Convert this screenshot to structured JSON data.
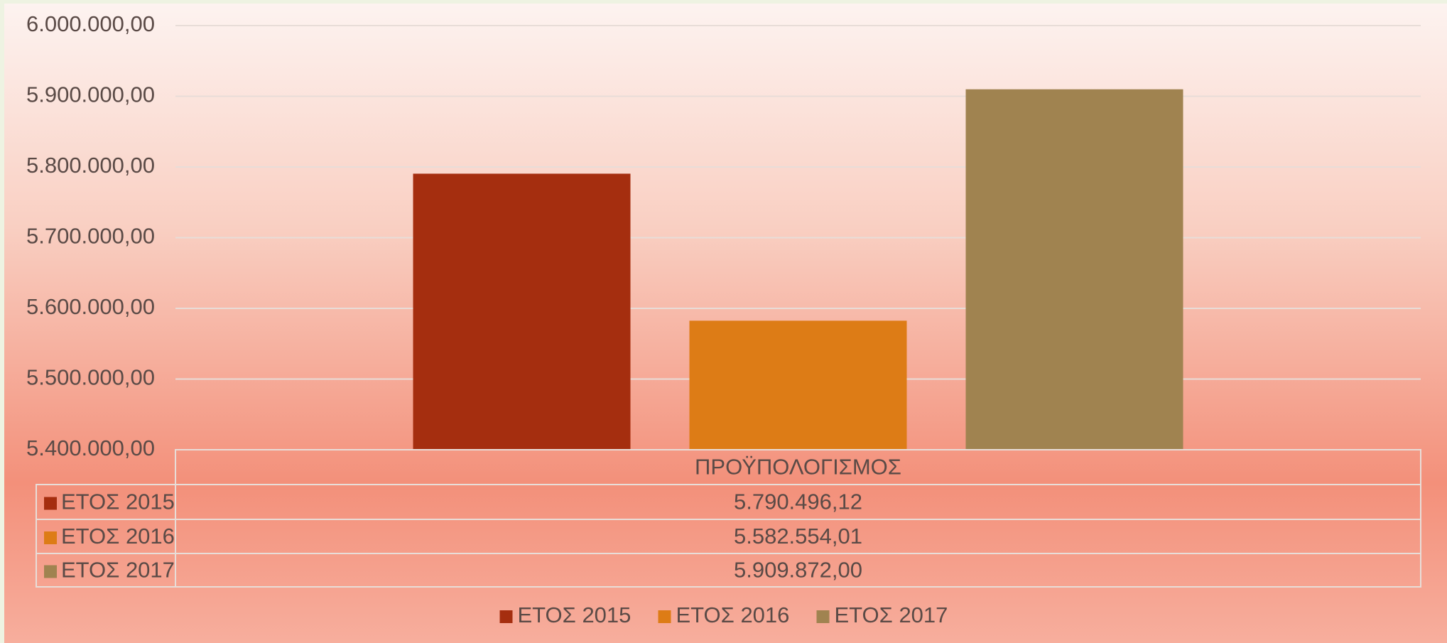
{
  "chart_data": {
    "type": "bar",
    "categories": [
      "ΠΡΟΫΠΟΛΟΓΙΣΜΟΣ"
    ],
    "series": [
      {
        "name": "ΕΤΟΣ 2015",
        "color": "#a52e0f",
        "values": [
          5790496.12
        ],
        "value_labels": [
          "5.790.496,12"
        ]
      },
      {
        "name": "ΕΤΟΣ 2016",
        "color": "#dd7c16",
        "values": [
          5582554.01
        ],
        "value_labels": [
          "5.582.554,01"
        ]
      },
      {
        "name": "ΕΤΟΣ 2017",
        "color": "#a08350",
        "values": [
          5909872.0
        ],
        "value_labels": [
          "5.909.872,00"
        ]
      }
    ],
    "ylim": [
      5400000,
      6000000
    ],
    "yticks": [
      {
        "value": 5400000,
        "label": "5.400.000,00"
      },
      {
        "value": 5500000,
        "label": "5.500.000,00"
      },
      {
        "value": 5600000,
        "label": "5.600.000,00"
      },
      {
        "value": 5700000,
        "label": "5.700.000,00"
      },
      {
        "value": 5800000,
        "label": "5.800.000,00"
      },
      {
        "value": 5900000,
        "label": "5.900.000,00"
      },
      {
        "value": 6000000,
        "label": "6.000.000,00"
      }
    ],
    "grid": true,
    "data_table": true,
    "legend": "bottom"
  }
}
